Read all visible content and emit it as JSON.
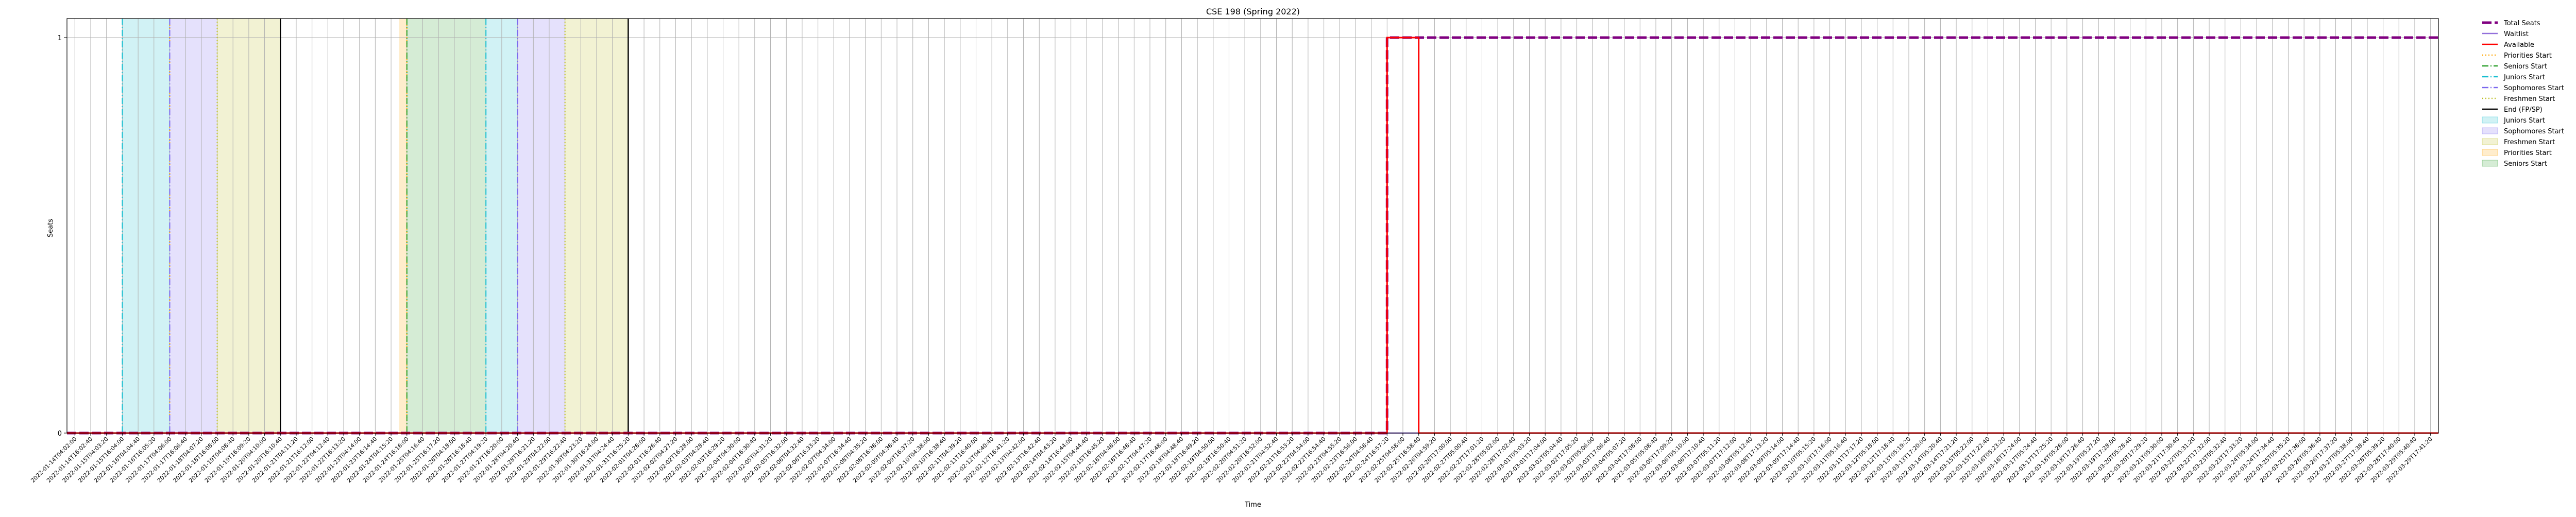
{
  "chart_data": {
    "type": "line",
    "title": "CSE 198 (Spring 2022)",
    "xlabel": "Time",
    "ylabel": "Seats",
    "ylim": [
      0,
      1.05
    ],
    "yticks": [
      0,
      1
    ],
    "x": [
      "2022-01-14T04:02:00",
      "2022-01-14T16:02:40",
      "2022-01-15T04:03:20",
      "2022-01-15T16:04:00",
      "2022-01-16T04:04:40",
      "2022-01-16T16:05:20",
      "2022-01-17T04:06:00",
      "2022-01-17T16:06:40",
      "2022-01-18T04:07:20",
      "2022-01-18T16:08:00",
      "2022-01-19T04:08:40",
      "2022-01-19T16:09:20",
      "2022-01-20T04:10:00",
      "2022-01-20T16:10:40",
      "2022-01-21T04:11:20",
      "2022-01-21T16:12:00",
      "2022-01-22T04:12:40",
      "2022-01-22T16:13:20",
      "2022-01-23T04:14:00",
      "2022-01-23T16:14:40",
      "2022-01-24T04:15:20",
      "2022-01-24T16:16:00",
      "2022-01-25T04:16:40",
      "2022-01-25T16:17:20",
      "2022-01-26T04:18:00",
      "2022-01-26T16:18:40",
      "2022-01-27T04:19:20",
      "2022-01-27T16:20:00",
      "2022-01-28T04:20:40",
      "2022-01-28T16:21:20",
      "2022-01-29T04:22:00",
      "2022-01-29T16:22:40",
      "2022-01-30T04:23:20",
      "2022-01-30T16:24:00",
      "2022-01-31T04:24:40",
      "2022-01-31T16:25:20",
      "2022-02-01T04:26:00",
      "2022-02-01T16:26:40",
      "2022-02-02T04:27:20",
      "2022-02-02T16:28:00",
      "2022-02-03T04:28:40",
      "2022-02-03T16:29:20",
      "2022-02-04T04:30:00",
      "2022-02-04T16:30:40",
      "2022-02-05T04:31:20",
      "2022-02-05T16:32:00",
      "2022-02-06T04:32:40",
      "2022-02-06T16:33:20",
      "2022-02-07T04:34:00",
      "2022-02-07T16:34:40",
      "2022-02-08T04:35:20",
      "2022-02-08T16:36:00",
      "2022-02-09T04:36:40",
      "2022-02-09T16:37:20",
      "2022-02-10T04:38:00",
      "2022-02-10T16:38:40",
      "2022-02-11T04:39:20",
      "2022-02-11T16:40:00",
      "2022-02-12T04:40:40",
      "2022-02-12T16:41:20",
      "2022-02-13T04:42:00",
      "2022-02-13T16:42:40",
      "2022-02-14T04:43:20",
      "2022-02-14T16:44:00",
      "2022-02-15T04:44:40",
      "2022-02-15T16:45:20",
      "2022-02-16T04:46:00",
      "2022-02-16T16:46:40",
      "2022-02-17T04:47:20",
      "2022-02-17T16:48:00",
      "2022-02-18T04:48:40",
      "2022-02-18T16:49:20",
      "2022-02-19T04:50:00",
      "2022-02-19T16:50:40",
      "2022-02-20T04:51:20",
      "2022-02-20T16:52:00",
      "2022-02-21T04:52:40",
      "2022-02-21T16:53:20",
      "2022-02-22T04:54:00",
      "2022-02-22T16:54:40",
      "2022-02-23T04:55:20",
      "2022-02-23T16:56:00",
      "2022-02-24T04:56:40",
      "2022-02-24T16:57:20",
      "2022-02-25T04:58:00",
      "2022-02-25T16:58:40",
      "2022-02-26T04:59:20",
      "2022-02-26T17:00:00",
      "2022-02-27T05:00:40",
      "2022-02-27T17:01:20",
      "2022-02-28T05:02:00",
      "2022-02-28T17:02:40",
      "2022-03-01T05:03:20",
      "2022-03-01T17:04:00",
      "2022-03-02T05:04:40",
      "2022-03-02T17:05:20",
      "2022-03-03T05:06:00",
      "2022-03-03T17:06:40",
      "2022-03-04T05:07:20",
      "2022-03-04T17:08:00",
      "2022-03-05T05:08:40",
      "2022-03-05T17:09:20",
      "2022-03-06T05:10:00",
      "2022-03-06T17:10:40",
      "2022-03-07T05:11:20",
      "2022-03-07T17:12:00",
      "2022-03-08T05:12:40",
      "2022-03-08T17:13:20",
      "2022-03-09T05:14:00",
      "2022-03-09T17:14:40",
      "2022-03-10T05:15:20",
      "2022-03-10T17:16:00",
      "2022-03-11T05:16:40",
      "2022-03-11T17:17:20",
      "2022-03-12T05:18:00",
      "2022-03-12T17:18:40",
      "2022-03-13T05:19:20",
      "2022-03-13T17:20:00",
      "2022-03-14T05:20:40",
      "2022-03-14T17:21:20",
      "2022-03-15T05:22:00",
      "2022-03-15T17:22:40",
      "2022-03-16T05:23:20",
      "2022-03-16T17:24:00",
      "2022-03-17T05:24:40",
      "2022-03-17T17:25:20",
      "2022-03-18T05:26:00",
      "2022-03-18T17:26:40",
      "2022-03-19T05:27:20",
      "2022-03-19T17:28:00",
      "2022-03-20T05:28:40",
      "2022-03-20T17:29:20",
      "2022-03-21T05:30:00",
      "2022-03-21T17:30:40",
      "2022-03-22T05:31:20",
      "2022-03-22T17:32:00",
      "2022-03-23T05:32:40",
      "2022-03-23T17:33:20",
      "2022-03-24T05:34:00",
      "2022-03-24T17:34:40",
      "2022-03-25T05:35:20",
      "2022-03-25T17:36:00",
      "2022-03-26T05:36:40",
      "2022-03-26T17:37:20",
      "2022-03-27T05:38:00",
      "2022-03-27T17:38:40",
      "2022-03-28T05:39:20",
      "2022-03-28T17:40:00",
      "2022-03-29T05:40:40",
      "2022-03-29T17:41:20"
    ],
    "series": [
      {
        "name": "Total Seats",
        "color": "#800080",
        "dash": "dashed",
        "step_index": 83,
        "before": 0,
        "after": 1
      },
      {
        "name": "Waitlist",
        "color": "#9370db",
        "dash": "solid",
        "step_index": null,
        "before": 0,
        "after": 0
      },
      {
        "name": "Available",
        "color": "#ff0000",
        "dash": "solid",
        "pulse_start": 83,
        "pulse_end": 85,
        "before": 0,
        "pulse_value": 1,
        "after": 0
      }
    ],
    "markers": [
      {
        "name": "Priorities Start",
        "color": "#ffa500",
        "dash": "dotted",
        "indices": [
          6,
          21
        ]
      },
      {
        "name": "Seniors Start",
        "color": "#2ca02c",
        "dash": "dashdot",
        "indices": [
          21
        ]
      },
      {
        "name": "Juniors Start",
        "color": "#17becf",
        "dash": "dashdot",
        "indices": [
          3,
          26
        ]
      },
      {
        "name": "Sophomores Start",
        "color": "#7b68ee",
        "dash": "dashdot",
        "indices": [
          6,
          28
        ]
      },
      {
        "name": "Freshmen Start",
        "color": "#bcbd22",
        "dash": "dotted",
        "indices": [
          9,
          31
        ]
      },
      {
        "name": "End (FP/SP)",
        "color": "#000000",
        "dash": "solid",
        "indices": [
          13,
          35
        ]
      }
    ],
    "bands": [
      {
        "name": "Juniors Start",
        "color": "#17becf",
        "start": 3,
        "end": 6
      },
      {
        "name": "Sophomores Start",
        "color": "#7b68ee",
        "start": 6,
        "end": 9
      },
      {
        "name": "Freshmen Start",
        "color": "#bcbd22",
        "start": 9,
        "end": 13
      },
      {
        "name": "Priorities Start",
        "color": "#ffa500",
        "start": 20.5,
        "end": 21
      },
      {
        "name": "Seniors Start",
        "color": "#2ca02c",
        "start": 21,
        "end": 26
      },
      {
        "name": "Juniors Start",
        "color": "#17becf",
        "start": 26,
        "end": 28
      },
      {
        "name": "Sophomores Start",
        "color": "#7b68ee",
        "start": 28,
        "end": 31
      },
      {
        "name": "Freshmen Start",
        "color": "#bcbd22",
        "start": 31,
        "end": 35
      }
    ],
    "legend": {
      "placement": "outside-top-right",
      "entries": [
        {
          "label": "Total Seats",
          "kind": "line",
          "color": "#800080",
          "dash": "dashed"
        },
        {
          "label": "Waitlist",
          "kind": "line",
          "color": "#9370db",
          "dash": "solid"
        },
        {
          "label": "Available",
          "kind": "line",
          "color": "#ff0000",
          "dash": "solid"
        },
        {
          "label": "Priorities Start",
          "kind": "line",
          "color": "#ffa500",
          "dash": "dotted"
        },
        {
          "label": "Seniors Start",
          "kind": "line",
          "color": "#2ca02c",
          "dash": "dashdot"
        },
        {
          "label": "Juniors Start",
          "kind": "line",
          "color": "#17becf",
          "dash": "dashdot"
        },
        {
          "label": "Sophomores Start",
          "kind": "line",
          "color": "#7b68ee",
          "dash": "dashdot"
        },
        {
          "label": "Freshmen Start",
          "kind": "line",
          "color": "#bcbd22",
          "dash": "dotted"
        },
        {
          "label": "End (FP/SP)",
          "kind": "line",
          "color": "#000000",
          "dash": "solid"
        },
        {
          "label": "Juniors Start",
          "kind": "patch",
          "color": "#17becf"
        },
        {
          "label": "Sophomores Start",
          "kind": "patch",
          "color": "#7b68ee"
        },
        {
          "label": "Freshmen Start",
          "kind": "patch",
          "color": "#bcbd22"
        },
        {
          "label": "Priorities Start",
          "kind": "patch",
          "color": "#ffa500"
        },
        {
          "label": "Seniors Start",
          "kind": "patch",
          "color": "#2ca02c"
        }
      ]
    },
    "grid": true
  }
}
